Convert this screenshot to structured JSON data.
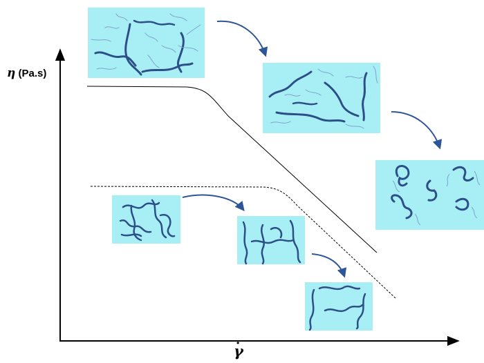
{
  "y_axis": {
    "symbol": "η",
    "unit": "(Pa.s)"
  },
  "x_axis": {
    "symbol": "γ",
    "dot": "·"
  },
  "colors": {
    "panel_fill": "#a8eef5",
    "chain_thick": "#2c4f87",
    "chain_thin": "#7fa3c9",
    "arrow": "#2e5597",
    "curve": "#000000"
  },
  "curves": [
    {
      "name": "solid-viscosity-curve",
      "style": "solid"
    },
    {
      "name": "dashed-viscosity-curve",
      "style": "dashed"
    }
  ],
  "panels": [
    "long-chains-entangled",
    "long-chains-disentangling",
    "long-chains-coiled",
    "short-chains-entangled",
    "short-chains-disentangling",
    "short-chains-extended"
  ]
}
